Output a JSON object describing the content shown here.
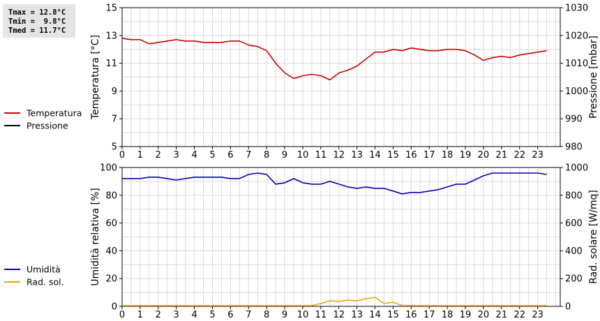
{
  "stats": {
    "tmax": "Tmax = 12.8°C",
    "tmin": "Tmin =  9.8°C",
    "tmed": "Tmed = 11.7°C"
  },
  "chart_data": [
    {
      "type": "line",
      "x_ticks": [
        "0",
        "1",
        "2",
        "3",
        "4",
        "5",
        "6",
        "7",
        "8",
        "9",
        "10",
        "11",
        "12",
        "13",
        "14",
        "15",
        "16",
        "17",
        "18",
        "19",
        "20",
        "21",
        "22",
        "23"
      ],
      "xlim": [
        0,
        24.25
      ],
      "ylabel_left": "Temperatura [°C]",
      "ylim_left": [
        5,
        15
      ],
      "yticks_left": [
        5,
        7,
        9,
        11,
        13,
        15
      ],
      "ylabel_right": "Pressione [mbar]",
      "ylim_right": [
        980,
        1030
      ],
      "yticks_right": [
        980,
        990,
        1000,
        1010,
        1020,
        1030
      ],
      "grid": true,
      "legend": [
        "Temperatura",
        "Pressione"
      ],
      "series": [
        {
          "name": "Temperatura",
          "axis": "left",
          "color": "#cc0000",
          "x": [
            0,
            0.5,
            1,
            1.5,
            2,
            2.5,
            3,
            3.5,
            4,
            4.5,
            5,
            5.5,
            6,
            6.5,
            7,
            7.5,
            8,
            8.5,
            9,
            9.5,
            10,
            10.5,
            11,
            11.5,
            12,
            12.5,
            13,
            13.5,
            14,
            14.5,
            15,
            15.5,
            16,
            16.5,
            17,
            17.5,
            18,
            18.5,
            19,
            19.5,
            20,
            20.5,
            21,
            21.5,
            22,
            22.5,
            23,
            23.5
          ],
          "y": [
            12.8,
            12.7,
            12.7,
            12.4,
            12.5,
            12.6,
            12.7,
            12.6,
            12.6,
            12.5,
            12.5,
            12.5,
            12.6,
            12.6,
            12.3,
            12.2,
            11.9,
            11.0,
            10.3,
            9.9,
            10.1,
            10.2,
            10.1,
            9.8,
            10.3,
            10.5,
            10.8,
            11.3,
            11.8,
            11.8,
            12.0,
            11.9,
            12.1,
            12.0,
            11.9,
            11.9,
            12.0,
            12.0,
            11.9,
            11.6,
            11.2,
            11.4,
            11.5,
            11.4,
            11.6,
            11.7,
            11.8,
            11.9
          ]
        },
        {
          "name": "Pressione",
          "axis": "right",
          "color": "#000000",
          "x": [],
          "y": []
        }
      ]
    },
    {
      "type": "line",
      "x_ticks": [
        "0",
        "1",
        "2",
        "3",
        "4",
        "5",
        "6",
        "7",
        "8",
        "9",
        "10",
        "11",
        "12",
        "13",
        "14",
        "15",
        "16",
        "17",
        "18",
        "19",
        "20",
        "21",
        "22",
        "23"
      ],
      "xlim": [
        0,
        24.25
      ],
      "ylabel_left": "Umidità relativa [%]",
      "ylim_left": [
        0,
        100
      ],
      "yticks_left": [
        0,
        20,
        40,
        60,
        80,
        100
      ],
      "ylabel_right": "Rad. solare [W/mq]",
      "ylim_right": [
        0,
        1000
      ],
      "yticks_right": [
        0,
        200,
        400,
        600,
        800,
        1000
      ],
      "grid": true,
      "legend": [
        "Umidità",
        "Rad. sol."
      ],
      "series": [
        {
          "name": "Umidità",
          "axis": "left",
          "color": "#0000bb",
          "x": [
            0,
            0.5,
            1,
            1.5,
            2,
            2.5,
            3,
            3.5,
            4,
            4.5,
            5,
            5.5,
            6,
            6.5,
            7,
            7.5,
            8,
            8.5,
            9,
            9.5,
            10,
            10.5,
            11,
            11.5,
            12,
            12.5,
            13,
            13.5,
            14,
            14.5,
            15,
            15.5,
            16,
            16.5,
            17,
            17.5,
            18,
            18.5,
            19,
            19.5,
            20,
            20.5,
            21,
            21.5,
            22,
            22.5,
            23,
            23.5
          ],
          "y": [
            92,
            92,
            92,
            93,
            93,
            92,
            91,
            92,
            93,
            93,
            93,
            93,
            92,
            92,
            95,
            96,
            95,
            88,
            89,
            92,
            89,
            88,
            88,
            90,
            88,
            86,
            85,
            86,
            85,
            85,
            83,
            81,
            82,
            82,
            83,
            84,
            86,
            88,
            88,
            91,
            94,
            96,
            96,
            96,
            96,
            96,
            96,
            95
          ]
        },
        {
          "name": "Rad. sol.",
          "axis": "right",
          "color": "#f0a000",
          "x": [
            0,
            0.5,
            1,
            1.5,
            2,
            2.5,
            3,
            3.5,
            4,
            4.5,
            5,
            5.5,
            6,
            6.5,
            7,
            7.5,
            8,
            8.5,
            9,
            9.5,
            10,
            10.5,
            11,
            11.5,
            12,
            12.5,
            13,
            13.5,
            14,
            14.5,
            15,
            15.5,
            16,
            16.5,
            17,
            17.5,
            18,
            18.5,
            19,
            19.5,
            20,
            20.5,
            21,
            21.5,
            22,
            22.5,
            23,
            23.5
          ],
          "y": [
            5,
            5,
            5,
            5,
            5,
            5,
            5,
            5,
            5,
            5,
            5,
            5,
            5,
            5,
            5,
            5,
            5,
            5,
            5,
            5,
            5,
            5,
            20,
            40,
            35,
            45,
            40,
            55,
            65,
            20,
            30,
            5,
            5,
            5,
            5,
            5,
            5,
            5,
            5,
            5,
            5,
            5,
            5,
            5,
            5,
            5,
            5,
            5
          ]
        }
      ]
    }
  ]
}
